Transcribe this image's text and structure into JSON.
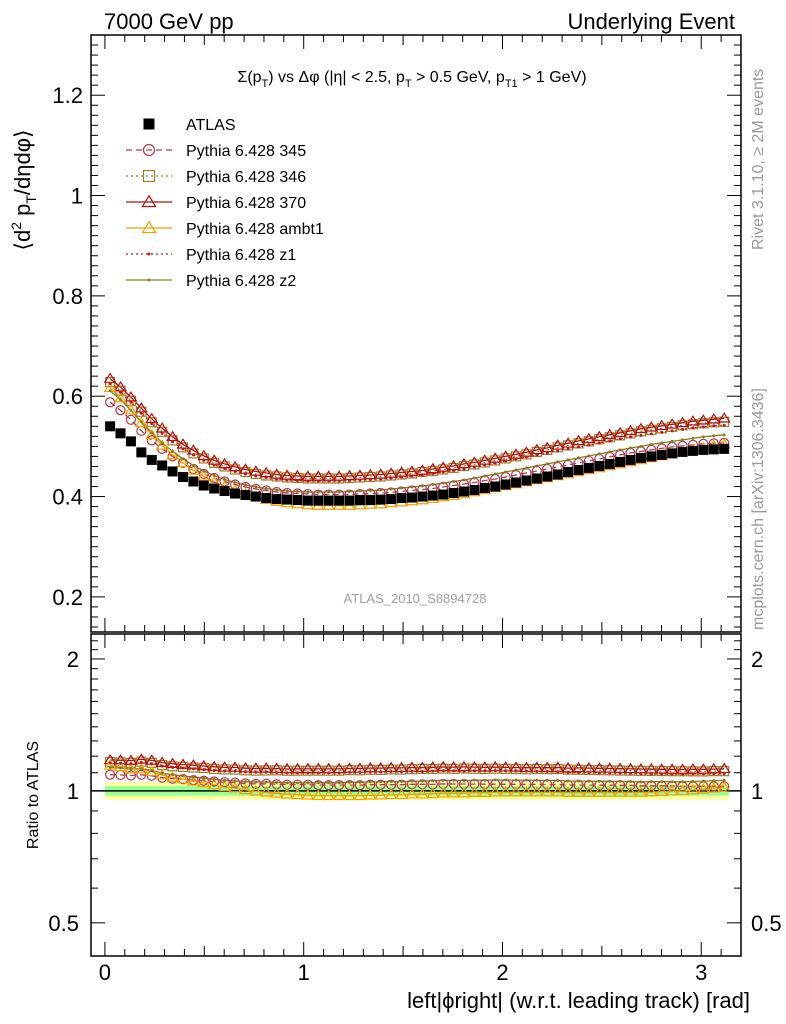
{
  "header": {
    "left": "7000 GeV pp",
    "right": "Underlying Event"
  },
  "side_labels": {
    "rivet": "Rivet 3.1.10, ≥ 2M events",
    "mcplots": "mcplots.cern.ch [arXiv:1306.3436]"
  },
  "watermark": "ATLAS_2010_S8894728",
  "colors": {
    "data": "#000000",
    "band_yellow": "#ffff99",
    "band_green": "#99ff99",
    "ratio_line": "#000000"
  },
  "chart_data": [
    {
      "type": "scatter",
      "panel": "main",
      "title": "Σ(pT) vs Δφ (|η| < 2.5, pT > 0.5 GeV, pT1 > 1 GeV)",
      "title_parts": {
        "t1": "Σ(p",
        "sub1": "T",
        "t2": ") vs Δφ (|η| < 2.5, p",
        "sub2": "T",
        "t3": " > 0.5 GeV, p",
        "sub3": "T1",
        "t4": " > 1 GeV)"
      },
      "ylabel": "⟨d² pT/dηdφ⟩",
      "ylabel_parts": {
        "a": "⟨d",
        "sup": "2",
        "b": " p",
        "sub": "T",
        "c": "/dηdφ⟩"
      },
      "xlim": [
        -0.07,
        3.2
      ],
      "ylim": [
        0.13,
        1.32
      ],
      "yticks": [
        0.2,
        0.4,
        0.6,
        0.8,
        1.0,
        1.2
      ],
      "ytick_labels": [
        "0.2",
        "0.4",
        "0.6",
        "0.8",
        "1",
        "1.2"
      ],
      "x": [
        0.0262,
        0.0785,
        0.1309,
        0.1833,
        0.2356,
        0.288,
        0.3403,
        0.3927,
        0.4451,
        0.4974,
        0.5498,
        0.6021,
        0.6545,
        0.7069,
        0.7592,
        0.8116,
        0.8639,
        0.9163,
        0.9687,
        1.021,
        1.0734,
        1.1257,
        1.1781,
        1.2305,
        1.2828,
        1.3352,
        1.3875,
        1.4399,
        1.4923,
        1.5446,
        1.597,
        1.6493,
        1.7017,
        1.7541,
        1.8064,
        1.8588,
        1.9111,
        1.9635,
        2.0159,
        2.0682,
        2.1206,
        2.1729,
        2.2253,
        2.2777,
        2.33,
        2.3824,
        2.4347,
        2.4871,
        2.5395,
        2.5918,
        2.6442,
        2.6965,
        2.7489,
        2.8013,
        2.8536,
        2.906,
        2.9583,
        3.0107,
        3.0631,
        3.1154
      ],
      "series": [
        {
          "name": "ATLAS",
          "color": "#000000",
          "marker": "square",
          "line": "none",
          "values": [
            0.54,
            0.526,
            0.51,
            0.488,
            0.473,
            0.462,
            0.45,
            0.439,
            0.43,
            0.422,
            0.416,
            0.411,
            0.406,
            0.403,
            0.4,
            0.397,
            0.395,
            0.394,
            0.393,
            0.392,
            0.392,
            0.392,
            0.392,
            0.392,
            0.393,
            0.393,
            0.394,
            0.395,
            0.397,
            0.398,
            0.4,
            0.402,
            0.404,
            0.407,
            0.41,
            0.413,
            0.417,
            0.42,
            0.424,
            0.428,
            0.432,
            0.436,
            0.44,
            0.444,
            0.449,
            0.453,
            0.457,
            0.461,
            0.465,
            0.469,
            0.473,
            0.477,
            0.48,
            0.483,
            0.486,
            0.489,
            0.491,
            0.493,
            0.494,
            0.495
          ]
        },
        {
          "name": "Pythia 6.428 345",
          "color": "#b03a4e",
          "marker": "circle",
          "line": "dashed",
          "values": [
            0.588,
            0.572,
            0.553,
            0.531,
            0.512,
            0.495,
            0.48,
            0.467,
            0.455,
            0.445,
            0.437,
            0.43,
            0.424,
            0.419,
            0.415,
            0.412,
            0.409,
            0.407,
            0.406,
            0.405,
            0.404,
            0.404,
            0.404,
            0.404,
            0.405,
            0.406,
            0.407,
            0.408,
            0.41,
            0.412,
            0.414,
            0.416,
            0.419,
            0.422,
            0.425,
            0.428,
            0.432,
            0.435,
            0.439,
            0.443,
            0.447,
            0.451,
            0.455,
            0.459,
            0.463,
            0.467,
            0.471,
            0.475,
            0.479,
            0.483,
            0.487,
            0.49,
            0.493,
            0.496,
            0.499,
            0.501,
            0.503,
            0.505,
            0.506,
            0.507
          ]
        },
        {
          "name": "Pythia 6.428 346",
          "color": "#a07828",
          "marker": "square-open",
          "line": "dotted",
          "values": [
            0.628,
            0.611,
            0.591,
            0.569,
            0.548,
            0.529,
            0.512,
            0.498,
            0.486,
            0.476,
            0.467,
            0.46,
            0.454,
            0.449,
            0.445,
            0.442,
            0.44,
            0.438,
            0.437,
            0.436,
            0.436,
            0.436,
            0.436,
            0.437,
            0.438,
            0.439,
            0.44,
            0.442,
            0.444,
            0.446,
            0.449,
            0.451,
            0.454,
            0.457,
            0.461,
            0.464,
            0.468,
            0.472,
            0.476,
            0.48,
            0.484,
            0.489,
            0.493,
            0.498,
            0.502,
            0.506,
            0.51,
            0.514,
            0.518,
            0.522,
            0.526,
            0.53,
            0.533,
            0.536,
            0.539,
            0.542,
            0.544,
            0.546,
            0.548,
            0.549
          ]
        },
        {
          "name": "Pythia 6.428 370",
          "color": "#b01010",
          "marker": "triangle-open",
          "line": "solid",
          "values": [
            0.635,
            0.618,
            0.598,
            0.576,
            0.555,
            0.536,
            0.519,
            0.504,
            0.492,
            0.481,
            0.472,
            0.465,
            0.459,
            0.454,
            0.45,
            0.447,
            0.444,
            0.442,
            0.441,
            0.44,
            0.44,
            0.44,
            0.44,
            0.441,
            0.442,
            0.443,
            0.444,
            0.446,
            0.448,
            0.45,
            0.452,
            0.455,
            0.458,
            0.461,
            0.465,
            0.468,
            0.472,
            0.476,
            0.48,
            0.484,
            0.488,
            0.493,
            0.497,
            0.502,
            0.506,
            0.511,
            0.515,
            0.519,
            0.523,
            0.527,
            0.531,
            0.535,
            0.538,
            0.541,
            0.544,
            0.547,
            0.55,
            0.552,
            0.554,
            0.556
          ]
        },
        {
          "name": "Pythia 6.428 ambt1",
          "color": "#f0a000",
          "marker": "triangle-open",
          "line": "solid",
          "values": [
            0.617,
            0.596,
            0.572,
            0.547,
            0.523,
            0.502,
            0.483,
            0.467,
            0.452,
            0.44,
            0.429,
            0.42,
            0.412,
            0.405,
            0.399,
            0.394,
            0.39,
            0.387,
            0.385,
            0.383,
            0.382,
            0.382,
            0.382,
            0.382,
            0.383,
            0.384,
            0.385,
            0.387,
            0.389,
            0.391,
            0.393,
            0.396,
            0.399,
            0.402,
            0.405,
            0.409,
            0.413,
            0.417,
            0.421,
            0.425,
            0.429,
            0.433,
            0.437,
            0.441,
            0.445,
            0.449,
            0.453,
            0.457,
            0.461,
            0.465,
            0.469,
            0.473,
            0.477,
            0.481,
            0.485,
            0.489,
            0.493,
            0.497,
            0.501,
            0.504
          ]
        },
        {
          "name": "Pythia 6.428 z1",
          "color": "#c01818",
          "marker": "dot",
          "line": "dotted",
          "values": [
            0.625,
            0.608,
            0.588,
            0.566,
            0.545,
            0.526,
            0.509,
            0.495,
            0.483,
            0.472,
            0.463,
            0.456,
            0.45,
            0.445,
            0.441,
            0.438,
            0.435,
            0.433,
            0.432,
            0.431,
            0.431,
            0.431,
            0.431,
            0.432,
            0.433,
            0.434,
            0.435,
            0.437,
            0.439,
            0.441,
            0.443,
            0.446,
            0.449,
            0.452,
            0.455,
            0.459,
            0.463,
            0.467,
            0.471,
            0.475,
            0.479,
            0.483,
            0.487,
            0.491,
            0.495,
            0.499,
            0.503,
            0.507,
            0.511,
            0.515,
            0.519,
            0.522,
            0.525,
            0.528,
            0.531,
            0.534,
            0.537,
            0.539,
            0.541,
            0.542
          ]
        },
        {
          "name": "Pythia 6.428 z2",
          "color": "#808020",
          "marker": "dot",
          "line": "solid",
          "values": [
            0.611,
            0.593,
            0.572,
            0.549,
            0.527,
            0.507,
            0.49,
            0.475,
            0.462,
            0.451,
            0.442,
            0.434,
            0.428,
            0.423,
            0.419,
            0.416,
            0.413,
            0.411,
            0.41,
            0.409,
            0.409,
            0.409,
            0.409,
            0.41,
            0.411,
            0.412,
            0.413,
            0.415,
            0.417,
            0.419,
            0.421,
            0.424,
            0.427,
            0.43,
            0.433,
            0.437,
            0.441,
            0.445,
            0.449,
            0.453,
            0.457,
            0.461,
            0.465,
            0.469,
            0.473,
            0.477,
            0.481,
            0.485,
            0.489,
            0.493,
            0.497,
            0.5,
            0.504,
            0.507,
            0.51,
            0.513,
            0.516,
            0.519,
            0.521,
            0.523
          ]
        }
      ],
      "legend": "top-left"
    },
    {
      "type": "scatter",
      "panel": "ratio",
      "ylabel": "Ratio to ATLAS",
      "xlabel": "left|ϕright| (w.r.t. leading track) [rad]",
      "xlabel_display": "left|ϕright| (w.r.t. leading track) [rad]",
      "xlim": [
        -0.07,
        3.2
      ],
      "ylim": [
        0.42,
        2.28
      ],
      "yscale": "log",
      "yticks": [
        0.5,
        1,
        2
      ],
      "ytick_labels": [
        "0.5",
        "1",
        "2"
      ],
      "xticks": [
        0,
        1,
        2,
        3
      ],
      "xtick_labels": [
        "0",
        "1",
        "2",
        "3"
      ],
      "uncertainty_band": {
        "yellow": [
          0.955,
          1.045
        ],
        "green": [
          0.975,
          1.025
        ]
      }
    }
  ]
}
